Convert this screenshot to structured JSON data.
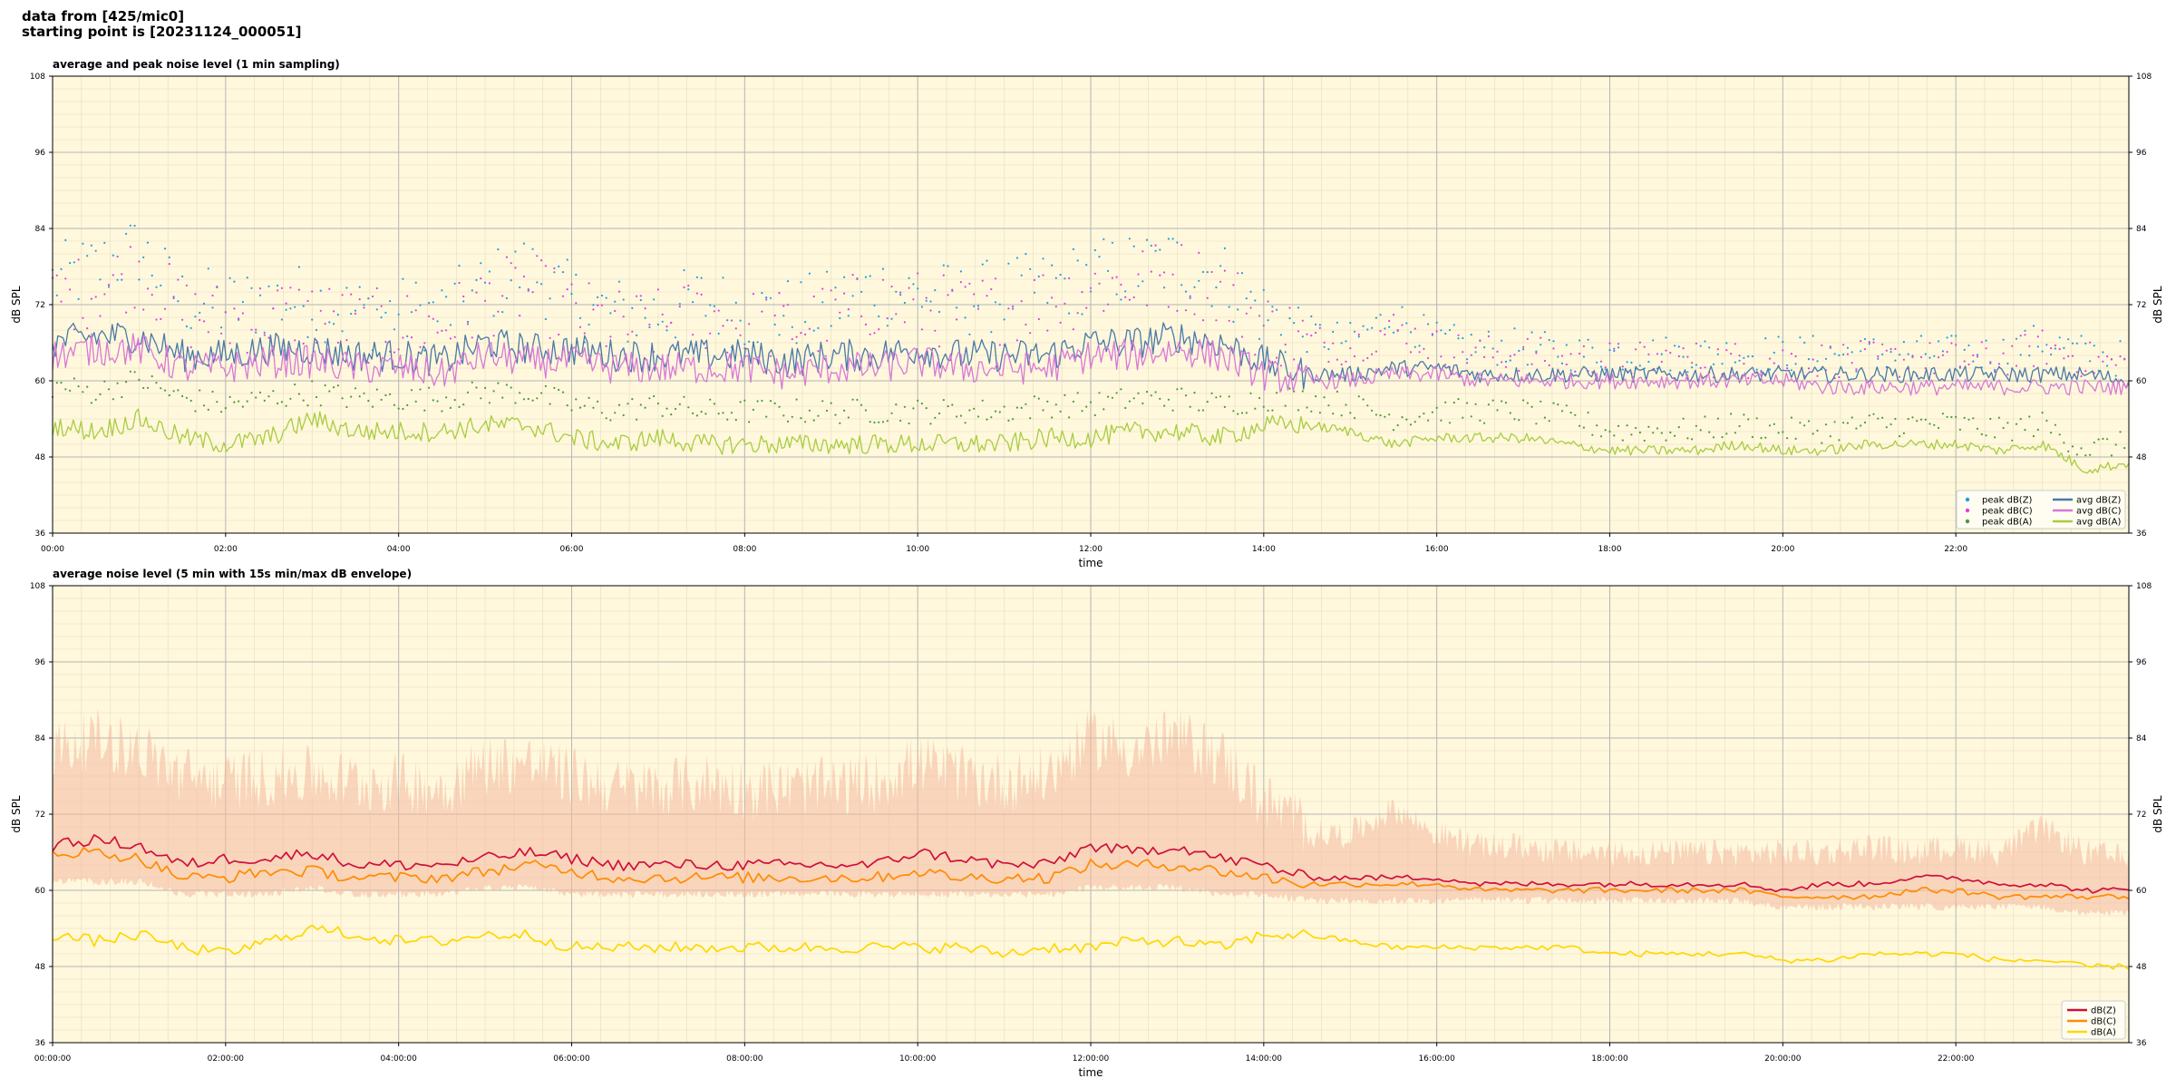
{
  "header": {
    "line1": "data from [425/mic0]",
    "line2": "starting point is [20231124_000051]"
  },
  "colors": {
    "plot_bg": "#fff8dc",
    "peak_z": "#1f9fe0",
    "peak_c": "#e040e0",
    "peak_a": "#4a9a3a",
    "avg_z": "#4a78a8",
    "avg_c": "#d878d8",
    "avg_a": "#a8cc40",
    "z": "#d0103a",
    "c": "#ff8c00",
    "a": "#ffd700",
    "envelope": "#f4b8a0"
  },
  "chart_data": [
    {
      "type": "line",
      "title": "average and peak noise level (1 min sampling)",
      "xlabel": "time",
      "ylabel": "dB SPL",
      "xlim_hours": [
        0,
        24
      ],
      "ylim": [
        36,
        108
      ],
      "yticks": [
        36,
        48,
        60,
        72,
        84,
        96,
        108
      ],
      "xtick_labels": [
        "00:00",
        "02:00",
        "04:00",
        "06:00",
        "08:00",
        "10:00",
        "12:00",
        "14:00",
        "16:00",
        "18:00",
        "20:00",
        "22:00"
      ],
      "grid": true,
      "legend_position": "lower-right",
      "legend": [
        "peak dB(Z)",
        "peak dB(C)",
        "peak dB(A)",
        "avg dB(Z)",
        "avg dB(C)",
        "avg dB(A)"
      ],
      "x_hours": [
        0,
        0.5,
        1,
        1.5,
        2,
        2.5,
        3,
        3.5,
        4,
        4.5,
        5,
        5.5,
        6,
        6.5,
        7,
        7.5,
        8,
        8.5,
        9,
        9.5,
        10,
        10.5,
        11,
        11.5,
        12,
        12.5,
        13,
        13.5,
        14,
        14.5,
        15,
        15.5,
        16,
        16.5,
        17,
        17.5,
        18,
        18.5,
        19,
        19.5,
        20,
        20.5,
        21,
        21.5,
        22,
        22.5,
        23,
        23.5,
        24
      ],
      "series": [
        {
          "name": "avg dB(Z)",
          "style": "line",
          "values": [
            66,
            67,
            67,
            64,
            64,
            65,
            65,
            64,
            64,
            63,
            66,
            65,
            65,
            64,
            64,
            64,
            64,
            63,
            64,
            64,
            65,
            64,
            64,
            64,
            66,
            66,
            67,
            66,
            63,
            61,
            61,
            62,
            62,
            61,
            61,
            61,
            61,
            61,
            61,
            61,
            61,
            61,
            61,
            61,
            61,
            61,
            61,
            61,
            60
          ]
        },
        {
          "name": "avg dB(C)",
          "style": "line",
          "values": [
            64,
            65,
            65,
            62,
            62,
            63,
            63,
            62,
            62,
            61,
            64,
            63,
            63,
            62,
            62,
            62,
            62,
            61,
            62,
            62,
            63,
            62,
            62,
            62,
            64,
            64,
            65,
            64,
            61,
            60,
            60,
            61,
            61,
            60,
            60,
            60,
            60,
            60,
            60,
            60,
            60,
            59,
            59,
            59,
            59,
            59,
            59,
            59,
            59
          ]
        },
        {
          "name": "avg dB(A)",
          "style": "line",
          "values": [
            53,
            52,
            54,
            51,
            50,
            51,
            54,
            52,
            52,
            52,
            53,
            53,
            51,
            50,
            51,
            50,
            50,
            50,
            50,
            50,
            50,
            50,
            50,
            51,
            51,
            52,
            52,
            51,
            53,
            53,
            52,
            50,
            51,
            51,
            51,
            50,
            49,
            49,
            49,
            50,
            49,
            49,
            50,
            50,
            50,
            49,
            50,
            46,
            47
          ]
        },
        {
          "name": "peak dB(Z)",
          "style": "points",
          "values": [
            75,
            77,
            80,
            72,
            71,
            72,
            72,
            70,
            70,
            70,
            74,
            77,
            72,
            70,
            70,
            72,
            70,
            70,
            71,
            74,
            73,
            72,
            73,
            74,
            76,
            77,
            78,
            76,
            70,
            67,
            66,
            70,
            66,
            65,
            65,
            64,
            64,
            64,
            64,
            64,
            64,
            64,
            64,
            64,
            64,
            64,
            66,
            64,
            63
          ]
        },
        {
          "name": "peak dB(C)",
          "style": "points",
          "values": [
            72,
            74,
            77,
            70,
            69,
            70,
            70,
            68,
            68,
            68,
            72,
            74,
            70,
            68,
            68,
            70,
            68,
            68,
            69,
            72,
            71,
            70,
            71,
            72,
            74,
            75,
            76,
            74,
            68,
            66,
            65,
            68,
            65,
            64,
            64,
            63,
            63,
            63,
            63,
            63,
            63,
            63,
            63,
            63,
            63,
            63,
            65,
            63,
            62
          ]
        },
        {
          "name": "peak dB(A)",
          "style": "points",
          "values": [
            59,
            58,
            60,
            57,
            56,
            57,
            58,
            57,
            57,
            57,
            58,
            58,
            56,
            55,
            56,
            55,
            55,
            55,
            55,
            55,
            55,
            55,
            55,
            56,
            56,
            57,
            57,
            56,
            57,
            57,
            56,
            54,
            55,
            55,
            55,
            54,
            52,
            52,
            52,
            53,
            52,
            52,
            53,
            53,
            53,
            52,
            53,
            49,
            50
          ]
        }
      ]
    },
    {
      "type": "line",
      "title": "average noise level (5 min with 15s min/max dB envelope)",
      "xlabel": "time",
      "ylabel": "dB SPL",
      "xlim_hours": [
        0,
        24
      ],
      "ylim": [
        36,
        108
      ],
      "yticks": [
        36,
        48,
        60,
        72,
        84,
        96,
        108
      ],
      "xtick_labels": [
        "00:00:00",
        "02:00:00",
        "04:00:00",
        "06:00:00",
        "08:00:00",
        "10:00:00",
        "12:00:00",
        "14:00:00",
        "16:00:00",
        "18:00:00",
        "20:00:00",
        "22:00:00"
      ],
      "grid": true,
      "legend_position": "lower-right",
      "legend": [
        "dB(Z)",
        "dB(C)",
        "dB(A)"
      ],
      "x_hours": [
        0,
        0.5,
        1,
        1.5,
        2,
        2.5,
        3,
        3.5,
        4,
        4.5,
        5,
        5.5,
        6,
        6.5,
        7,
        7.5,
        8,
        8.5,
        9,
        9.5,
        10,
        10.5,
        11,
        11.5,
        12,
        12.5,
        13,
        13.5,
        14,
        14.5,
        15,
        15.5,
        16,
        16.5,
        17,
        17.5,
        18,
        18.5,
        19,
        19.5,
        20,
        20.5,
        21,
        21.5,
        22,
        22.5,
        23,
        23.5,
        24
      ],
      "series": [
        {
          "name": "dB(Z)",
          "style": "line",
          "values": [
            67,
            68,
            67,
            64,
            65,
            65,
            66,
            64,
            64,
            64,
            65,
            66,
            65,
            64,
            64,
            64,
            64,
            64,
            64,
            64,
            66,
            65,
            64,
            64,
            67,
            66,
            67,
            65,
            64,
            62,
            62,
            62,
            62,
            61,
            61,
            61,
            61,
            61,
            61,
            61,
            60,
            61,
            61,
            62,
            62,
            61,
            61,
            60,
            60
          ]
        },
        {
          "name": "dB(C)",
          "style": "line",
          "values": [
            66,
            66,
            65,
            62,
            62,
            63,
            63,
            62,
            62,
            62,
            63,
            64,
            63,
            62,
            62,
            62,
            62,
            62,
            62,
            62,
            63,
            62,
            62,
            62,
            64,
            64,
            64,
            63,
            62,
            61,
            61,
            61,
            61,
            60,
            60,
            60,
            60,
            60,
            60,
            60,
            59,
            59,
            59,
            60,
            60,
            59,
            59,
            59,
            59
          ]
        },
        {
          "name": "dB(A)",
          "style": "line",
          "values": [
            53,
            52,
            53,
            51,
            50,
            52,
            54,
            53,
            52,
            52,
            53,
            53,
            51,
            51,
            51,
            51,
            51,
            51,
            51,
            51,
            51,
            51,
            50,
            51,
            51,
            52,
            52,
            51,
            53,
            53,
            52,
            51,
            51,
            51,
            51,
            51,
            50,
            50,
            50,
            50,
            49,
            49,
            50,
            50,
            50,
            49,
            49,
            48,
            48
          ]
        },
        {
          "name": "min/max envelope upper",
          "style": "band",
          "values": [
            80,
            82,
            80,
            76,
            75,
            76,
            76,
            75,
            75,
            74,
            78,
            78,
            76,
            74,
            74,
            75,
            74,
            74,
            74,
            75,
            78,
            76,
            75,
            76,
            82,
            80,
            82,
            79,
            72,
            68,
            68,
            72,
            68,
            66,
            66,
            65,
            65,
            65,
            65,
            65,
            65,
            65,
            66,
            65,
            66,
            65,
            69,
            65,
            64
          ]
        },
        {
          "name": "min/max envelope lower",
          "style": "band",
          "values": [
            62,
            62,
            62,
            60,
            60,
            60,
            61,
            60,
            60,
            60,
            61,
            61,
            60,
            60,
            60,
            60,
            60,
            60,
            60,
            60,
            60,
            60,
            60,
            60,
            61,
            61,
            61,
            60,
            60,
            59,
            59,
            59,
            59,
            59,
            59,
            59,
            59,
            59,
            59,
            59,
            58,
            58,
            58,
            58,
            58,
            58,
            58,
            57,
            57
          ]
        }
      ]
    }
  ]
}
